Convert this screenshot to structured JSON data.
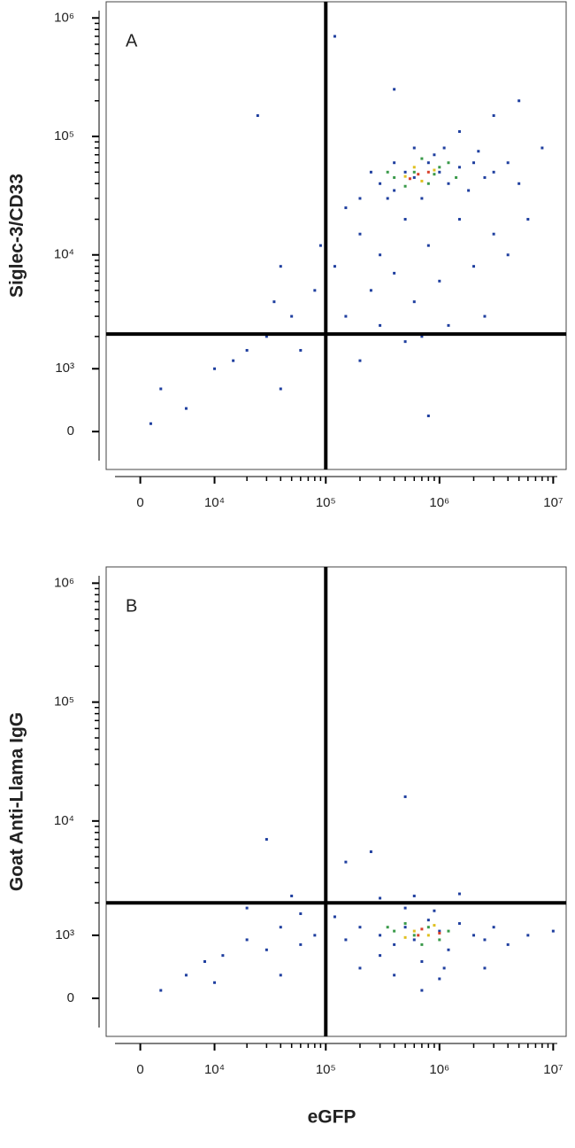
{
  "chart_data": [
    {
      "type": "scatter",
      "annotation": "A",
      "ylabel": "Siglec-3/CD33",
      "xscale": "biexponential",
      "yscale": "biexponential",
      "xlim": [
        -3500,
        13000000
      ],
      "ylim": [
        -520,
        1370000
      ],
      "xticks": [
        0,
        {
          "value": 10000,
          "label": "10⁴"
        },
        {
          "value": 100000,
          "label": "10⁵"
        },
        {
          "value": 1000000,
          "label": "10⁶"
        },
        {
          "value": 10000000,
          "label": "10⁷"
        }
      ],
      "yticks": [
        0,
        {
          "value": 1000,
          "label": "10³"
        },
        {
          "value": 10000,
          "label": "10⁴"
        },
        {
          "value": 100000,
          "label": "10⁵"
        },
        {
          "value": 1000000,
          "label": "10⁶"
        }
      ],
      "gates": {
        "x": 100000,
        "y": 2100
      },
      "series": [
        {
          "color": "#1f3f9f",
          "x": [
            300000,
            400000,
            500000,
            600000,
            800000,
            1000000,
            1200000,
            1500000,
            2000000,
            2500000,
            3000000,
            700000,
            900000,
            400000,
            350000,
            600000,
            1100000,
            1800000,
            2200000,
            4000000,
            5000000,
            250000,
            200000,
            150000,
            200000,
            300000,
            500000,
            800000,
            1500000,
            3000000,
            120000,
            250000,
            400000,
            600000,
            1000000,
            2000000,
            4000000,
            150000,
            300000,
            700000,
            50000,
            30000,
            20000,
            10000,
            15000,
            60000,
            80000,
            40000,
            90000,
            35000,
            200000,
            500000,
            1200000,
            2500000,
            6000000,
            8000000,
            5000000,
            3000000,
            1500000,
            25000,
            120000,
            400000,
            2000,
            5000,
            1000,
            40000,
            800000
          ],
          "values": [
            40000,
            35000,
            50000,
            45000,
            60000,
            50000,
            40000,
            55000,
            60000,
            45000,
            50000,
            30000,
            70000,
            60000,
            30000,
            80000,
            80000,
            35000,
            75000,
            60000,
            40000,
            50000,
            30000,
            25000,
            15000,
            10000,
            20000,
            12000,
            20000,
            15000,
            8000,
            5000,
            7000,
            4000,
            6000,
            8000,
            10000,
            3000,
            2500,
            2000,
            3000,
            2000,
            1500,
            1000,
            1200,
            1500,
            5000,
            8000,
            12000,
            4000,
            1200,
            1800,
            2500,
            3000,
            20000,
            80000,
            200000,
            150000,
            110000,
            150000,
            700000,
            250000,
            600,
            300,
            100,
            600,
            200
          ]
        },
        {
          "color": "#3a9a4a",
          "x": [
            400000,
            600000,
            800000,
            1000000,
            500000,
            1200000,
            700000,
            350000,
            900000,
            1400000
          ],
          "values": [
            45000,
            50000,
            40000,
            55000,
            38000,
            60000,
            65000,
            50000,
            48000,
            45000
          ]
        },
        {
          "color": "#e0c020",
          "x": [
            500000,
            700000,
            900000,
            600000
          ],
          "values": [
            46000,
            42000,
            52000,
            55000
          ]
        },
        {
          "color": "#d8402a",
          "x": [
            550000,
            800000,
            650000
          ],
          "values": [
            44000,
            50000,
            48000
          ]
        }
      ]
    },
    {
      "type": "scatter",
      "annotation": "B",
      "ylabel": "Goat Anti-Llama IgG",
      "xlabel": "eGFP",
      "xscale": "biexponential",
      "yscale": "biexponential",
      "xlim": [
        -3500,
        13000000
      ],
      "ylim": [
        -520,
        1370000
      ],
      "xticks": [
        0,
        {
          "value": 10000,
          "label": "10⁴"
        },
        {
          "value": 100000,
          "label": "10⁵"
        },
        {
          "value": 1000000,
          "label": "10⁶"
        },
        {
          "value": 10000000,
          "label": "10⁷"
        }
      ],
      "yticks": [
        0,
        {
          "value": 1000,
          "label": "10³"
        },
        {
          "value": 10000,
          "label": "10⁴"
        },
        {
          "value": 100000,
          "label": "10⁵"
        },
        {
          "value": 1000000,
          "label": "10⁶"
        }
      ],
      "gates": {
        "x": 100000,
        "y": 2000
      },
      "series": [
        {
          "color": "#1f3f9f",
          "x": [
            300000,
            400000,
            500000,
            600000,
            800000,
            1000000,
            1200000,
            1500000,
            2000000,
            2500000,
            3000000,
            4000000,
            200000,
            150000,
            120000,
            700000,
            900000,
            1100000,
            500000,
            300000,
            6000000,
            10000000,
            80000,
            60000,
            40000,
            30000,
            20000,
            12000,
            8000,
            5000,
            2000,
            20000,
            50000,
            100000,
            300000,
            600000,
            1500000,
            3000000,
            500000,
            30000,
            150000,
            250000,
            60000,
            200000,
            400000,
            1000000,
            2500000,
            10000,
            40000,
            700000
          ],
          "values": [
            1000,
            800,
            1200,
            900,
            1400,
            1100,
            700,
            1300,
            1000,
            900,
            1200,
            800,
            1200,
            900,
            1500,
            500,
            1700,
            400,
            1800,
            600,
            1000,
            1100,
            1000,
            800,
            1200,
            700,
            900,
            600,
            500,
            300,
            100,
            1800,
            2300,
            2500,
            2200,
            2300,
            2400,
            2000,
            16000,
            7000,
            4500,
            5500,
            1600,
            400,
            300,
            250,
            400,
            200,
            300,
            100
          ]
        },
        {
          "color": "#3a9a4a",
          "x": [
            400000,
            600000,
            800000,
            1000000,
            500000,
            1200000,
            700000,
            350000
          ],
          "values": [
            1100,
            1000,
            1200,
            900,
            1300,
            1100,
            800,
            1200
          ]
        },
        {
          "color": "#e0c020",
          "x": [
            600000,
            800000,
            900000,
            500000
          ],
          "values": [
            1100,
            1000,
            1250,
            950
          ]
        },
        {
          "color": "#d8402a",
          "x": [
            700000,
            650000,
            1000000
          ],
          "values": [
            1150,
            1000,
            1050
          ]
        }
      ]
    }
  ]
}
